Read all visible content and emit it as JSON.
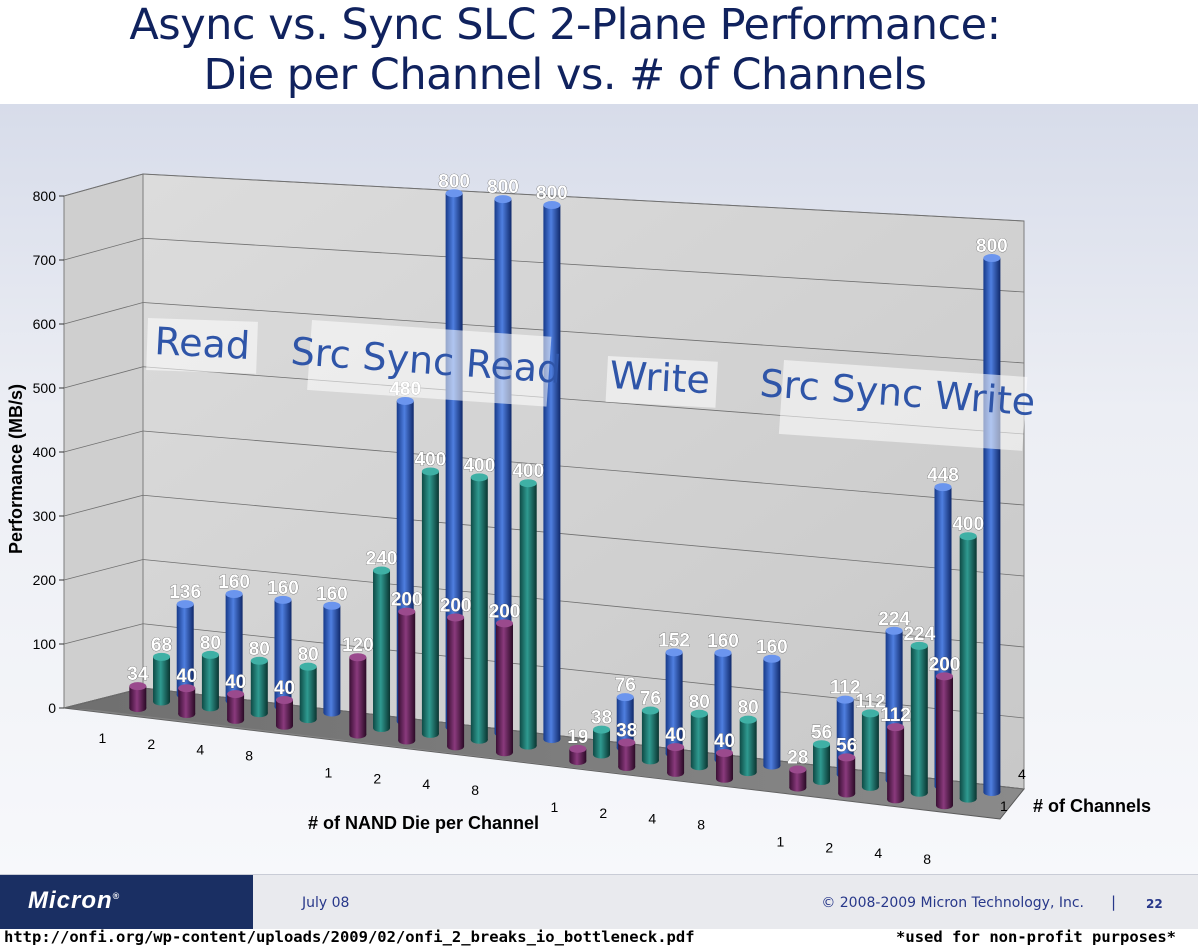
{
  "slide": {
    "title_line1": "Async vs. Sync SLC 2-Plane Performance:",
    "title_line2": "Die per Channel vs. # of Channels",
    "logo": "Micron",
    "date": "July 08",
    "copyright": "© 2008-2009 Micron Technology, Inc.",
    "separator": "|",
    "page_number": "22",
    "source_url": "http://onfi.org/wp-content/uploads/2009/02/onfi_2_breaks_io_bottleneck.pdf",
    "note": "*used for non-profit purposes*"
  },
  "colors": {
    "title": "#10225e",
    "group_label": "#2f55a8",
    "ch1": "#6e1f63",
    "ch2": "#1f7a73",
    "ch4": "#2d5cc0"
  },
  "chart_data": {
    "type": "bar",
    "subtype": "3d-clustered",
    "ylabel": "Performance (MB/s)",
    "xlabel": "# of NAND Die per Channel",
    "zlabel": "# of Channels",
    "ylim": [
      0,
      800
    ],
    "y_ticks": [
      "0",
      "100",
      "200",
      "300",
      "400",
      "500",
      "600",
      "700",
      "800"
    ],
    "z_ticks": [
      "1",
      "4"
    ],
    "categories": [
      "1",
      "2",
      "4",
      "8"
    ],
    "groups": [
      {
        "name": "Read",
        "series": [
          {
            "channels": "1",
            "values": [
              34,
              40,
              40,
              40
            ]
          },
          {
            "channels": "2",
            "values": [
              68,
              80,
              80,
              80
            ]
          },
          {
            "channels": "4",
            "values": [
              136,
              160,
              160,
              160
            ]
          }
        ]
      },
      {
        "name": "Src Sync Read",
        "series": [
          {
            "channels": "1",
            "values": [
              120,
              200,
              200,
              200
            ]
          },
          {
            "channels": "2",
            "values": [
              240,
              400,
              400,
              400
            ]
          },
          {
            "channels": "4",
            "values": [
              480,
              800,
              800,
              800
            ]
          }
        ]
      },
      {
        "name": "Write",
        "series": [
          {
            "channels": "1",
            "values": [
              19,
              38,
              40,
              40
            ]
          },
          {
            "channels": "2",
            "values": [
              38,
              76,
              80,
              80
            ]
          },
          {
            "channels": "4",
            "values": [
              76,
              152,
              160,
              160
            ]
          }
        ]
      },
      {
        "name": "Src Sync Write",
        "series": [
          {
            "channels": "1",
            "values": [
              28,
              56,
              112,
              200
            ]
          },
          {
            "channels": "2",
            "values": [
              56,
              112,
              224,
              400
            ]
          },
          {
            "channels": "4",
            "values": [
              112,
              224,
              448,
              800
            ]
          }
        ]
      }
    ]
  }
}
